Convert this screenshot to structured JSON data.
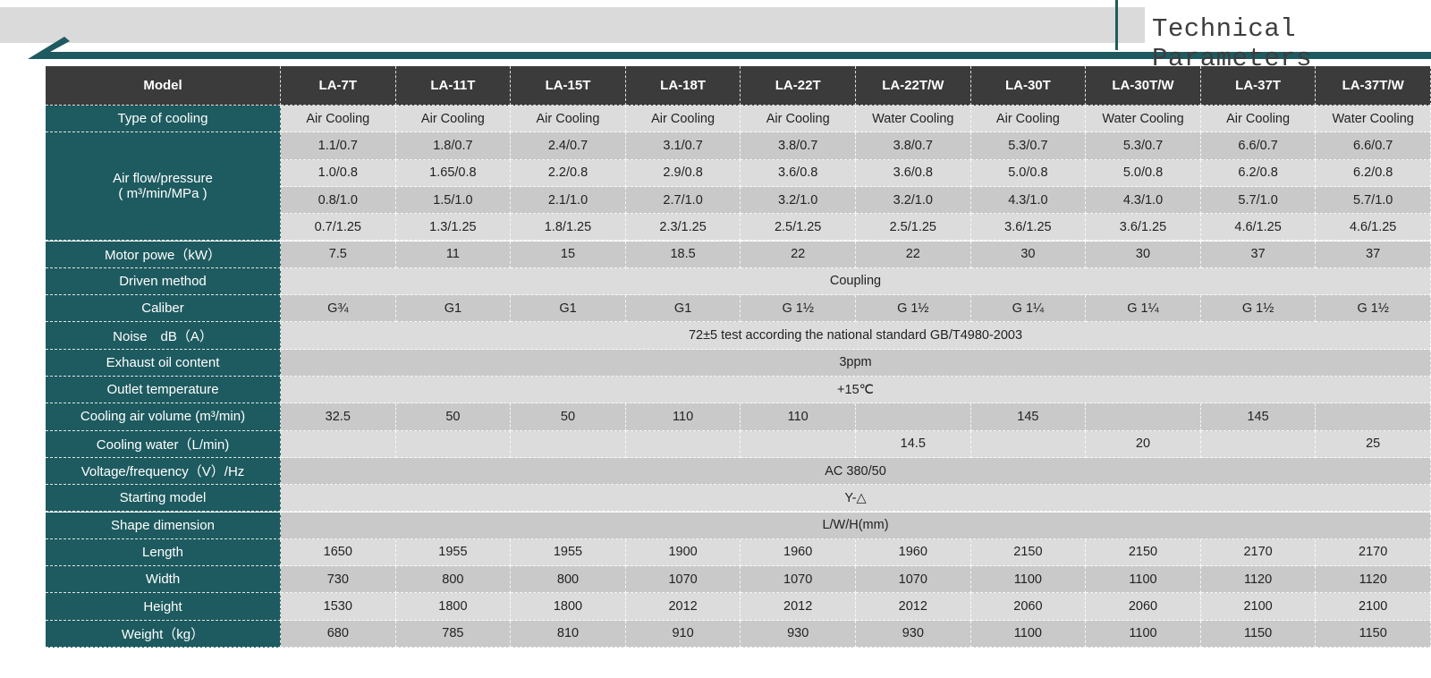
{
  "header": {
    "title": "Technical Parameters"
  },
  "table": {
    "columns": [
      "Model",
      "LA-7T",
      "LA-11T",
      "LA-15T",
      "LA-18T",
      "LA-22T",
      "LA-22T/W",
      "LA-30T",
      "LA-30T/W",
      "LA-37T",
      "LA-37T/W"
    ],
    "rows": [
      {
        "label": "Type of cooling",
        "cells": [
          "Air Cooling",
          "Air Cooling",
          "Air Cooling",
          "Air Cooling",
          "Air Cooling",
          "Water Cooling",
          "Air Cooling",
          "Water Cooling",
          "Air Cooling",
          "Water Cooling"
        ]
      },
      {
        "label": [
          "Air flow/pressure",
          "( m³/min/MPa )"
        ],
        "sub_rows": [
          [
            "1.1/0.7",
            "1.8/0.7",
            "2.4/0.7",
            "3.1/0.7",
            "3.8/0.7",
            "3.8/0.7",
            "5.3/0.7",
            "5.3/0.7",
            "6.6/0.7",
            "6.6/0.7"
          ],
          [
            "1.0/0.8",
            "1.65/0.8",
            "2.2/0.8",
            "2.9/0.8",
            "3.6/0.8",
            "3.6/0.8",
            "5.0/0.8",
            "5.0/0.8",
            "6.2/0.8",
            "6.2/0.8"
          ],
          [
            "0.8/1.0",
            "1.5/1.0",
            "2.1/1.0",
            "2.7/1.0",
            "3.2/1.0",
            "3.2/1.0",
            "4.3/1.0",
            "4.3/1.0",
            "5.7/1.0",
            "5.7/1.0"
          ],
          [
            "0.7/1.25",
            "1.3/1.25",
            "1.8/1.25",
            "2.3/1.25",
            "2.5/1.25",
            "2.5/1.25",
            "3.6/1.25",
            "3.6/1.25",
            "4.6/1.25",
            "4.6/1.25"
          ]
        ]
      },
      {
        "label": "Motor powe（kW）",
        "cells": [
          "7.5",
          "11",
          "15",
          "18.5",
          "22",
          "22",
          "30",
          "30",
          "37",
          "37"
        ]
      },
      {
        "label": "Driven method",
        "value": "Coupling"
      },
      {
        "label": "Caliber",
        "cells": [
          "G¾",
          "G1",
          "G1",
          "G1",
          "G 1½",
          "G 1½",
          "G 1¼",
          "G 1¼",
          "G 1½",
          "G 1½"
        ]
      },
      {
        "label": "Noise　dB（A）",
        "value": "72±5 test according the national standard GB/T4980-2003"
      },
      {
        "label": "Exhaust oil content",
        "value": "3ppm"
      },
      {
        "label": "Outlet temperature",
        "value": "+15℃"
      },
      {
        "label": "Cooling air volume (m³/min)",
        "cells": [
          "32.5",
          "50",
          "50",
          "110",
          "110",
          null,
          "145",
          null,
          "145",
          null
        ]
      },
      {
        "label": "Cooling water（L/min)",
        "cells": [
          null,
          null,
          null,
          null,
          null,
          "14.5",
          null,
          "20",
          null,
          "25"
        ]
      },
      {
        "label": "Voltage/frequency（V）/Hz",
        "value": "AC 380/50"
      },
      {
        "label": "Starting model",
        "value": "Y-△"
      },
      {
        "label": "Shape dimension",
        "value": "L/W/H(mm)"
      },
      {
        "label": "Length",
        "cells": [
          "1650",
          "1955",
          "1955",
          "1900",
          "1960",
          "1960",
          "2150",
          "2150",
          "2170",
          "2170"
        ]
      },
      {
        "label": "Width",
        "cells": [
          "730",
          "800",
          "800",
          "1070",
          "1070",
          "1070",
          "1100",
          "1100",
          "1120",
          "1120"
        ]
      },
      {
        "label": "Height",
        "cells": [
          "1530",
          "1800",
          "1800",
          "2012",
          "2012",
          "2012",
          "2060",
          "2060",
          "2100",
          "2100"
        ]
      },
      {
        "label": "Weight（kg）",
        "cells": [
          "680",
          "785",
          "810",
          "910",
          "930",
          "930",
          "1100",
          "1100",
          "1150",
          "1150"
        ]
      }
    ]
  }
}
